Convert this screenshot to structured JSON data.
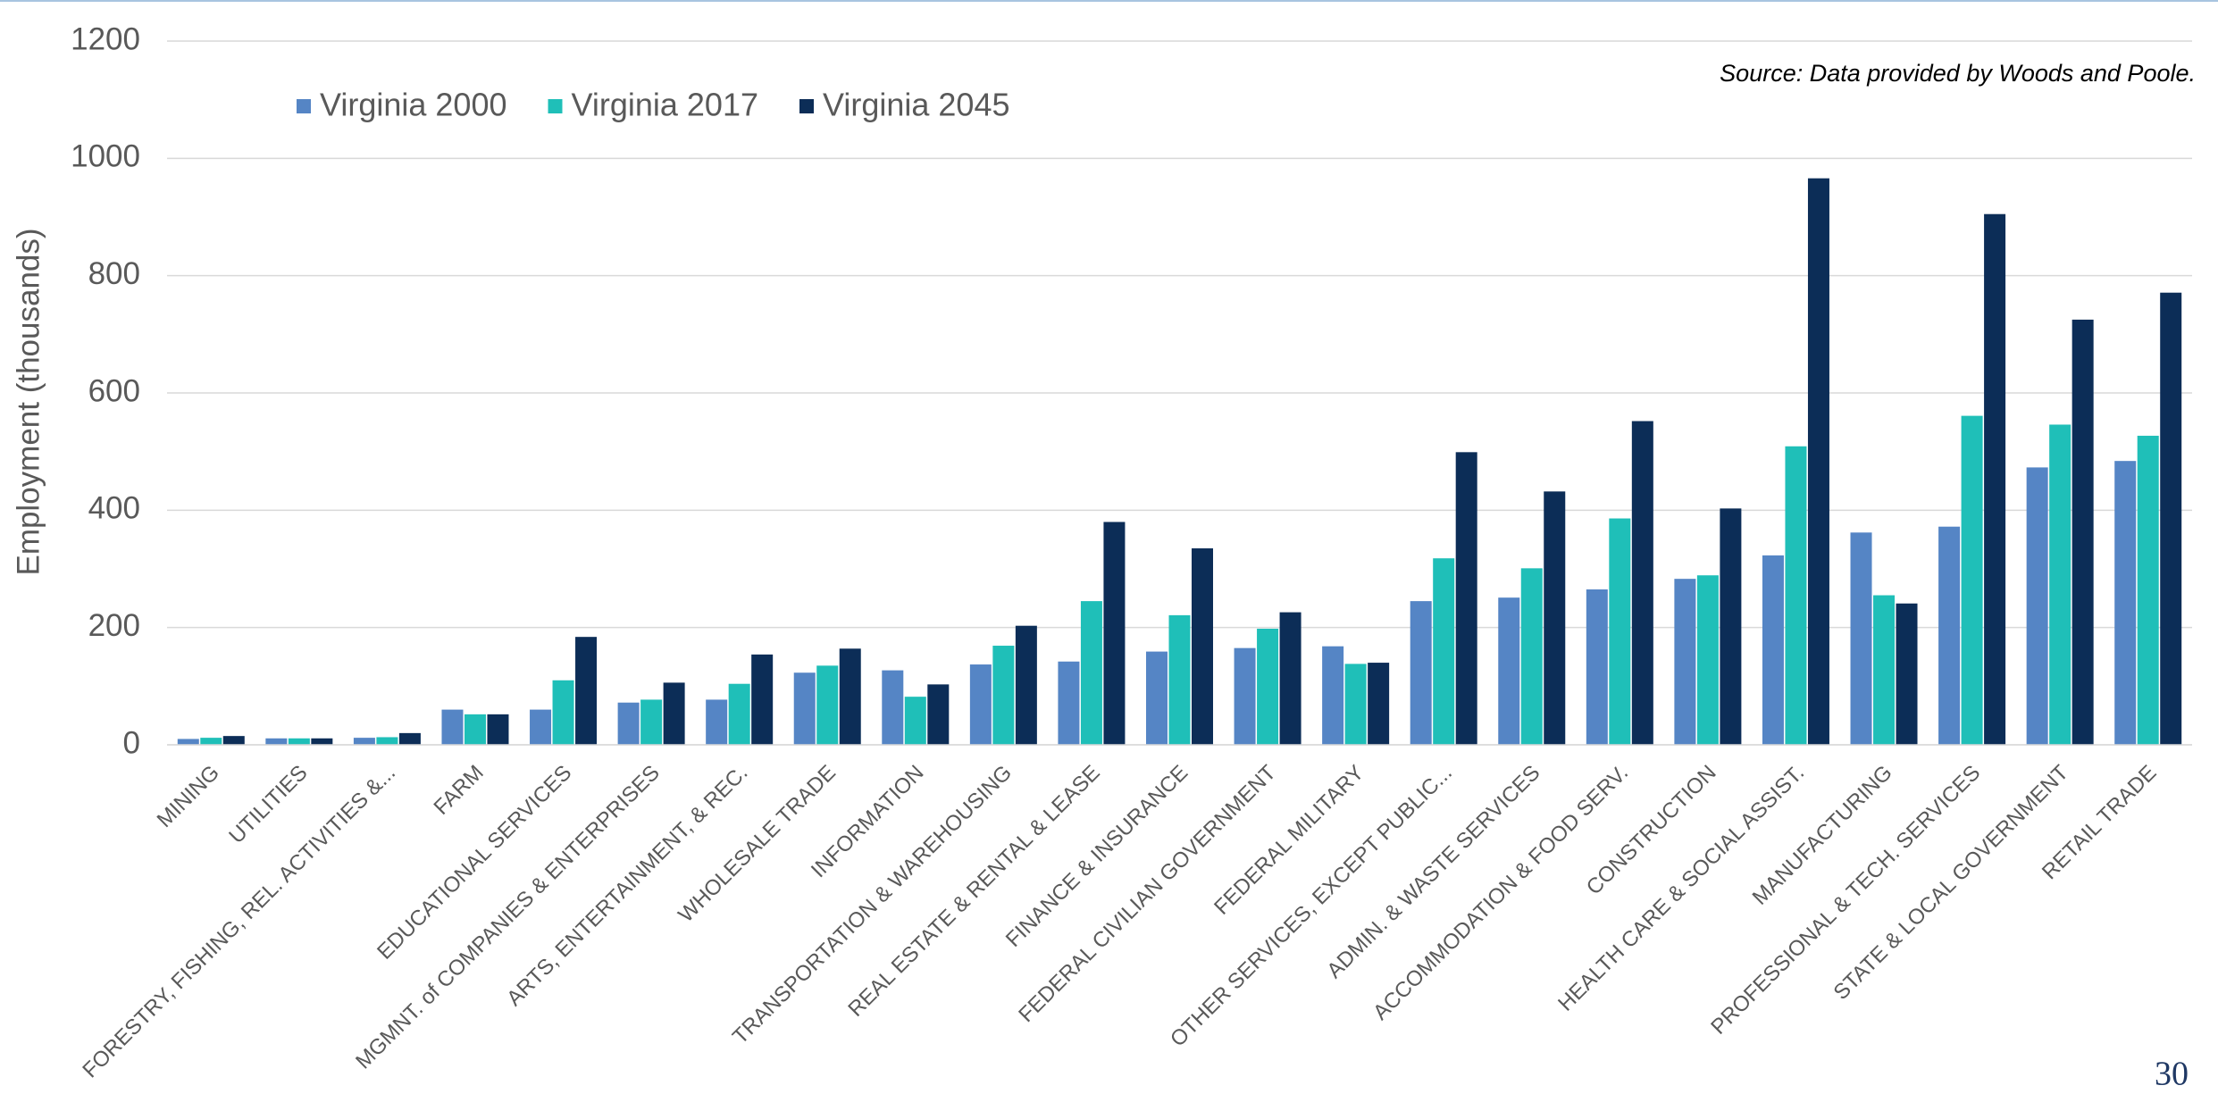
{
  "chart_data": {
    "type": "bar",
    "ylabel": "Employment (thousands)",
    "source": "Source: Data provided by Woods and Poole.",
    "page_number": "30",
    "categories": [
      "MINING",
      "UTILITIES",
      "FORESTRY, FISHING, REL. ACTIVITIES &...",
      "FARM",
      "EDUCATIONAL SERVICES",
      "MGMNT. of COMPANIES & ENTERPRISES",
      "ARTS, ENTERTAINMENT, & REC.",
      "WHOLESALE TRADE",
      "INFORMATION",
      "TRANSPORTATION & WAREHOUSING",
      "REAL ESTATE & RENTAL & LEASE",
      "FINANCE & INSURANCE",
      "FEDERAL CIVILIAN GOVERNMENT",
      "FEDERAL MILITARY",
      "OTHER SERVICES, EXCEPT PUBLIC...",
      "ADMIN. & WASTE SERVICES",
      "ACCOMMODATION & FOOD SERV.",
      "CONSTRUCTION",
      "HEALTH CARE & SOCIAL ASSIST.",
      "MANUFACTURING",
      "PROFESSIONAL & TECH. SERVICES",
      "STATE & LOCAL GOVERNMENT",
      "RETAIL TRADE"
    ],
    "series": [
      {
        "name": "Virginia 2000",
        "color": "#5585c5",
        "values": [
          10,
          11,
          12,
          60,
          60,
          72,
          77,
          123,
          127,
          137,
          142,
          159,
          165,
          168,
          245,
          251,
          265,
          283,
          323,
          362,
          372,
          473,
          484
        ]
      },
      {
        "name": "Virginia 2017",
        "color": "#1fbfb8",
        "values": [
          12,
          11,
          13,
          52,
          110,
          77,
          104,
          135,
          82,
          169,
          245,
          221,
          198,
          138,
          318,
          301,
          386,
          289,
          509,
          255,
          561,
          546,
          527
        ]
      },
      {
        "name": "Virginia 2045",
        "color": "#0c2d57",
        "values": [
          15,
          11,
          20,
          52,
          184,
          106,
          154,
          164,
          103,
          203,
          380,
          335,
          226,
          140,
          499,
          432,
          552,
          403,
          966,
          241,
          905,
          725,
          771
        ]
      }
    ],
    "ylim": [
      0,
      1200
    ],
    "yticks": [
      0,
      200,
      400,
      600,
      800,
      1000,
      1200
    ],
    "grid": true,
    "legend": "top-left"
  }
}
